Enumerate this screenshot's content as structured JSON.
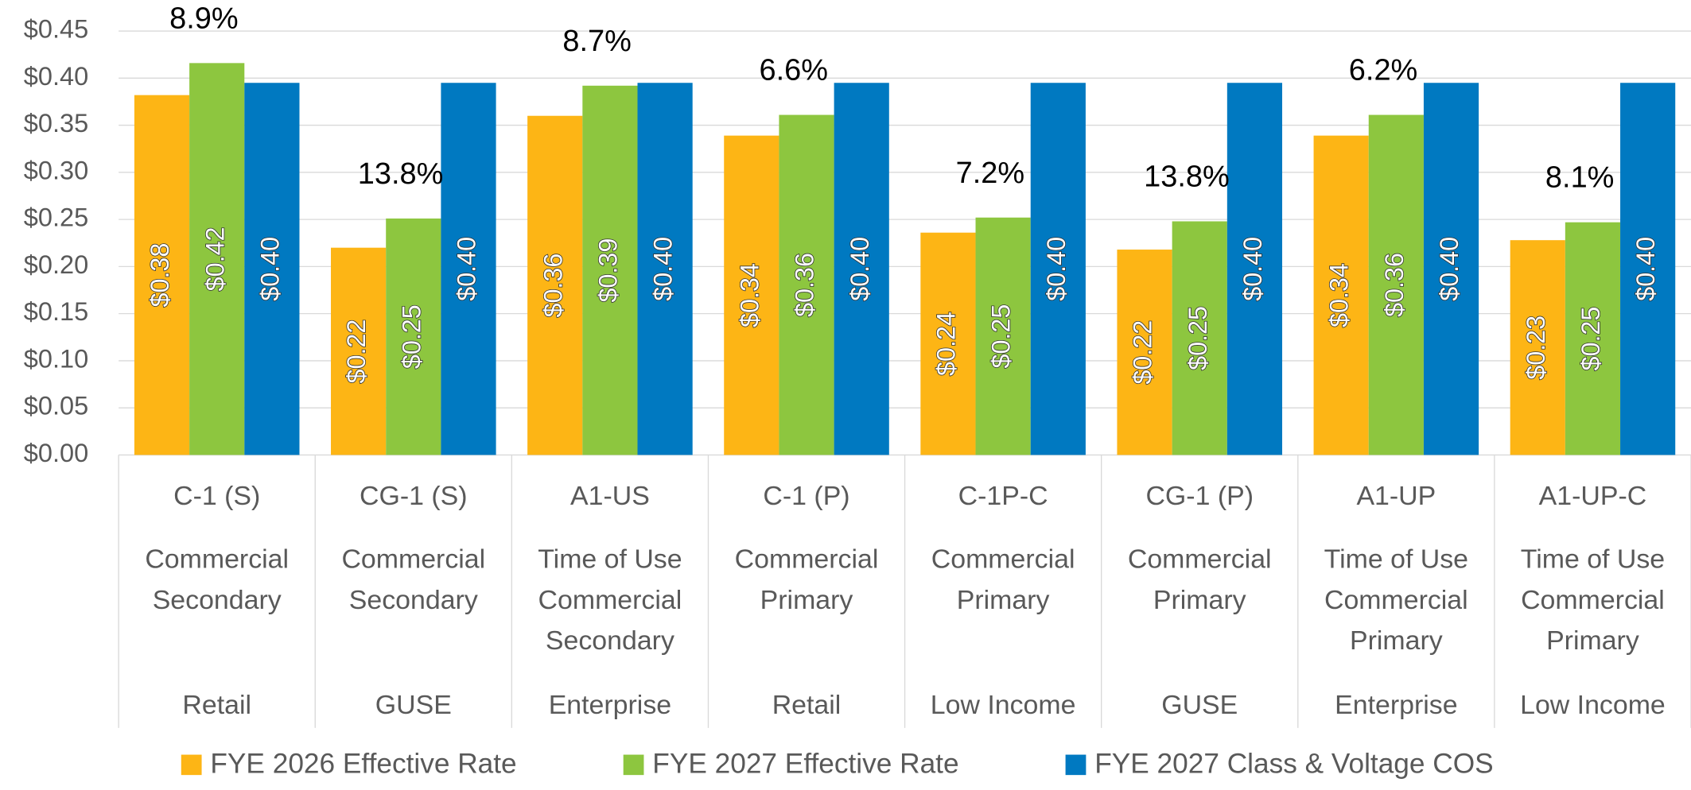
{
  "chart_data": {
    "type": "bar",
    "categories": [
      "C-1 (S)",
      "CG-1 (S)",
      "A1-US",
      "C-1 (P)",
      "C-1P-C",
      "CG-1 (P)",
      "A1-UP",
      "A1-UP-C"
    ],
    "descriptions": [
      [
        "Commercial",
        "Secondary"
      ],
      [
        "Commercial",
        "Secondary"
      ],
      [
        "Time of Use",
        "Commercial",
        "Secondary"
      ],
      [
        "Commercial",
        "Primary"
      ],
      [
        "Commercial",
        "Primary"
      ],
      [
        "Commercial",
        "Primary"
      ],
      [
        "Time of Use",
        "Commercial",
        "Primary"
      ],
      [
        "Time of Use",
        "Commercial",
        "Primary"
      ]
    ],
    "segments": [
      "Retail",
      "GUSE",
      "Enterprise",
      "Retail",
      "Low Income",
      "GUSE",
      "Enterprise",
      "Low Income"
    ],
    "series": [
      {
        "name": "FYE 2026 Effective Rate",
        "color": "#fdb515",
        "values": [
          0.382,
          0.22,
          0.36,
          0.339,
          0.236,
          0.218,
          0.339,
          0.228
        ],
        "value_labels": [
          "$0.38",
          "$0.22",
          "$0.36",
          "$0.34",
          "$0.24",
          "$0.22",
          "$0.34",
          "$0.23"
        ]
      },
      {
        "name": "FYE 2027 Effective Rate",
        "color": "#8dc63f",
        "values": [
          0.416,
          0.251,
          0.392,
          0.361,
          0.252,
          0.248,
          0.361,
          0.247
        ],
        "value_labels": [
          "$0.42",
          "$0.25",
          "$0.39",
          "$0.36",
          "$0.25",
          "$0.25",
          "$0.36",
          "$0.25"
        ]
      },
      {
        "name": "FYE 2027 Class & Voltage COS",
        "color": "#0079c1",
        "values": [
          0.395,
          0.395,
          0.395,
          0.395,
          0.395,
          0.395,
          0.395,
          0.395
        ],
        "value_labels": [
          "$0.40",
          "$0.40",
          "$0.40",
          "$0.40",
          "$0.40",
          "$0.40",
          "$0.40",
          "$0.40"
        ]
      }
    ],
    "annotations": [
      "8.9%",
      "13.8%",
      "8.7%",
      "6.6%",
      "7.2%",
      "13.8%",
      "6.2%",
      "8.1%"
    ],
    "ylim": [
      0,
      0.45
    ],
    "yticks": [
      {
        "value": 0,
        "label": "$0.00"
      },
      {
        "value": 0.05,
        "label": "$0.05"
      },
      {
        "value": 0.1,
        "label": "$0.10"
      },
      {
        "value": 0.15,
        "label": "$0.15"
      },
      {
        "value": 0.2,
        "label": "$0.20"
      },
      {
        "value": 0.25,
        "label": "$0.25"
      },
      {
        "value": 0.3,
        "label": "$0.30"
      },
      {
        "value": 0.35,
        "label": "$0.35"
      },
      {
        "value": 0.4,
        "label": "$0.40"
      },
      {
        "value": 0.45,
        "label": "$0.45"
      }
    ],
    "grid": true,
    "legend": "bottom"
  }
}
